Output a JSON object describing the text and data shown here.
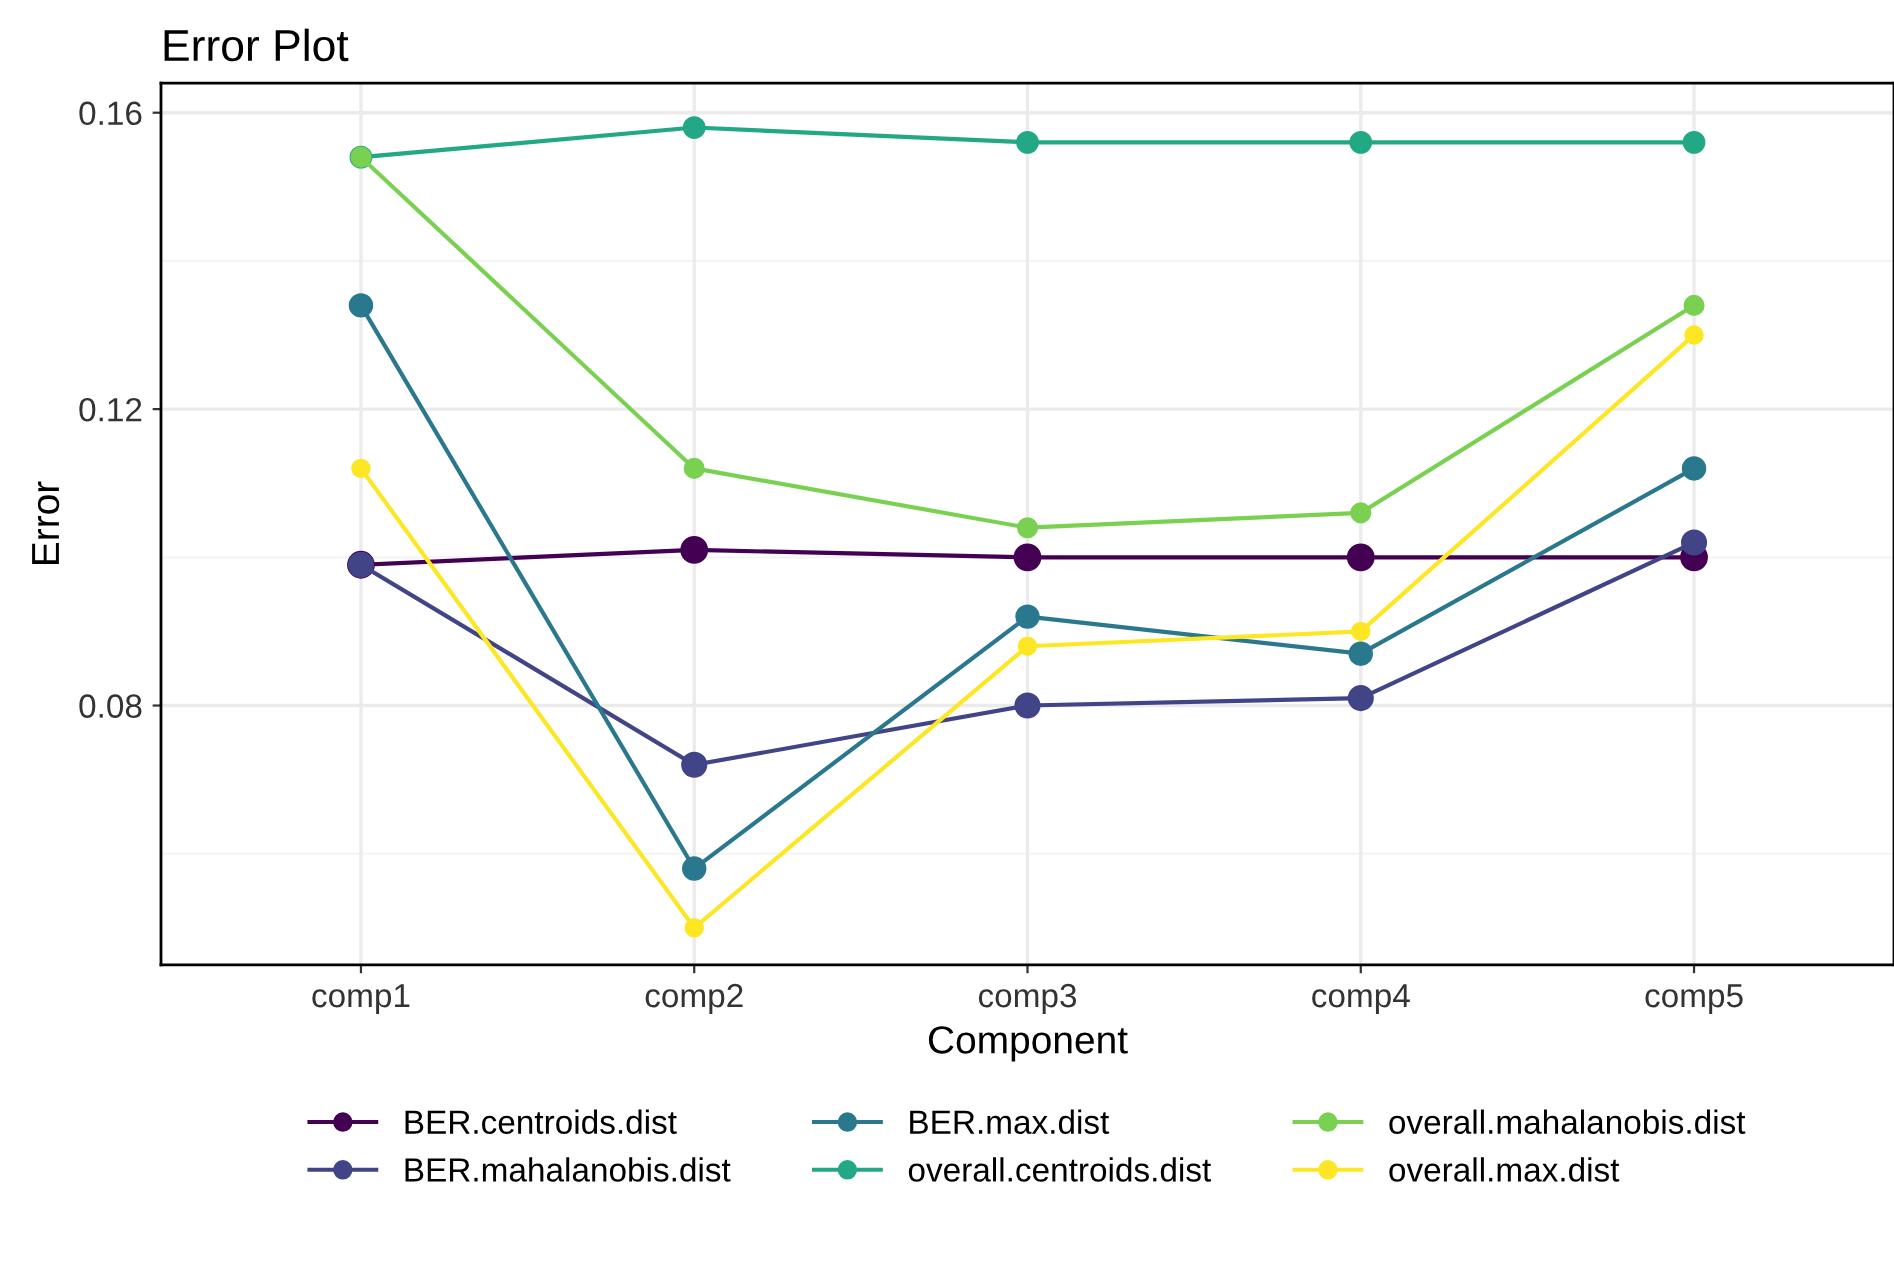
{
  "chart_data": {
    "type": "line",
    "title": "Error Plot",
    "xlabel": "Component",
    "ylabel": "Error",
    "categories": [
      "comp1",
      "comp2",
      "comp3",
      "comp4",
      "comp5"
    ],
    "series": [
      {
        "name": "BER.centroids.dist",
        "color": "#440154",
        "values": [
          0.099,
          0.101,
          0.1,
          0.1,
          0.1
        ]
      },
      {
        "name": "BER.mahalanobis.dist",
        "color": "#414487",
        "values": [
          0.099,
          0.072,
          0.08,
          0.081,
          0.102
        ]
      },
      {
        "name": "BER.max.dist",
        "color": "#2a788e",
        "values": [
          0.134,
          0.058,
          0.092,
          0.087,
          0.112
        ]
      },
      {
        "name": "overall.centroids.dist",
        "color": "#22a884",
        "values": [
          0.154,
          0.158,
          0.156,
          0.156,
          0.156
        ]
      },
      {
        "name": "overall.mahalanobis.dist",
        "color": "#7ad151",
        "values": [
          0.154,
          0.112,
          0.104,
          0.106,
          0.134
        ]
      },
      {
        "name": "overall.max.dist",
        "color": "#fde725",
        "values": [
          0.112,
          0.05,
          0.088,
          0.09,
          0.13
        ]
      }
    ],
    "ylim": [
      0.045,
      0.164
    ],
    "yticks": [
      0.08,
      0.12,
      0.16
    ],
    "grid": true,
    "legend": "bottom",
    "marker": "circle",
    "line_style": "solid"
  }
}
